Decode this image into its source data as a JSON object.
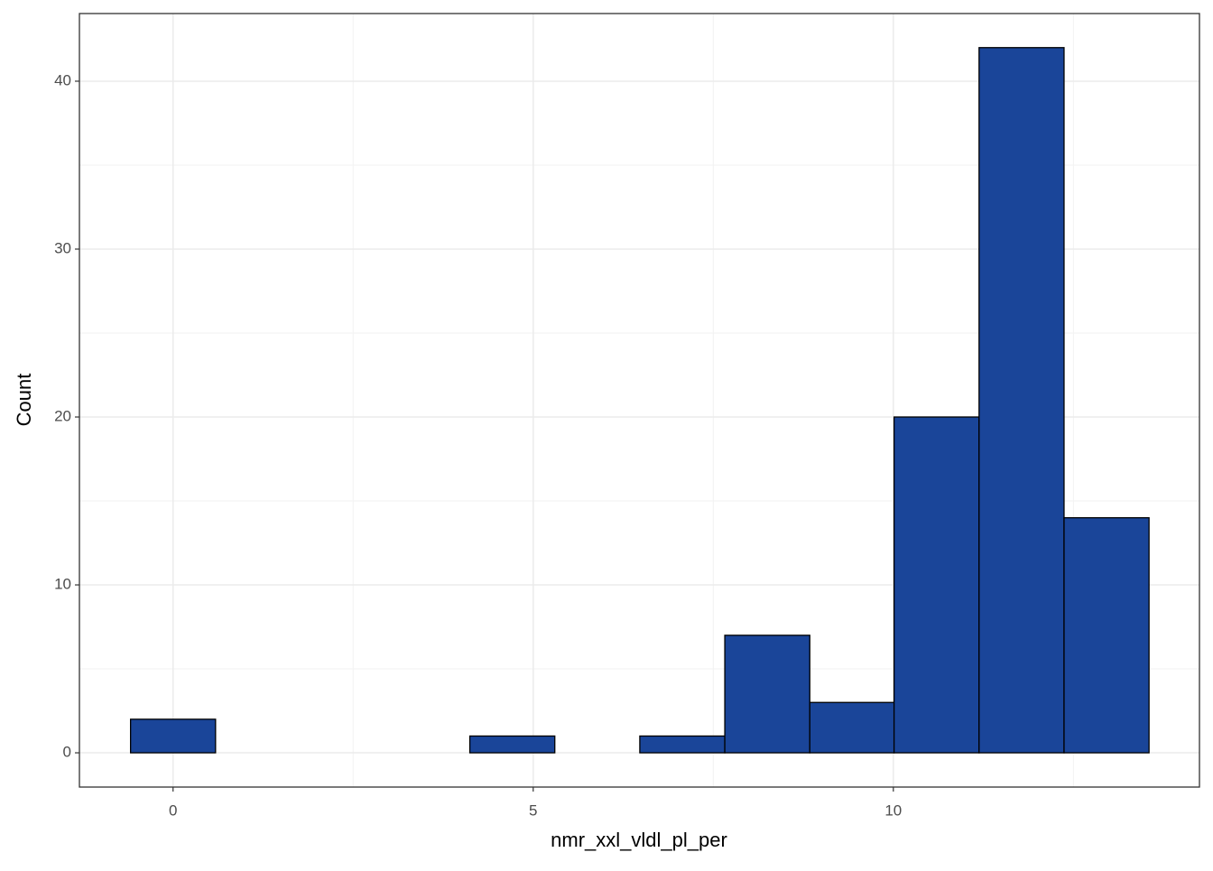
{
  "chart_data": {
    "type": "histogram",
    "xlabel": "nmr_xxl_vldl_pl_per",
    "ylabel": "Count",
    "bins": [
      -0.59,
      0.59,
      1.77,
      2.95,
      4.12,
      5.3,
      6.48,
      7.66,
      8.84,
      10.01,
      11.19,
      12.37,
      13.55
    ],
    "values": [
      2,
      0,
      0,
      0,
      1,
      0,
      1,
      7,
      3,
      20,
      42,
      14
    ],
    "color": "#1a4599",
    "xlim": [
      -1.3,
      14.25
    ],
    "xticks": [
      0,
      5,
      10
    ],
    "ylim": [
      -2.04,
      44.03
    ],
    "yticks": [
      0,
      10,
      20,
      30,
      40
    ],
    "grid": true
  }
}
